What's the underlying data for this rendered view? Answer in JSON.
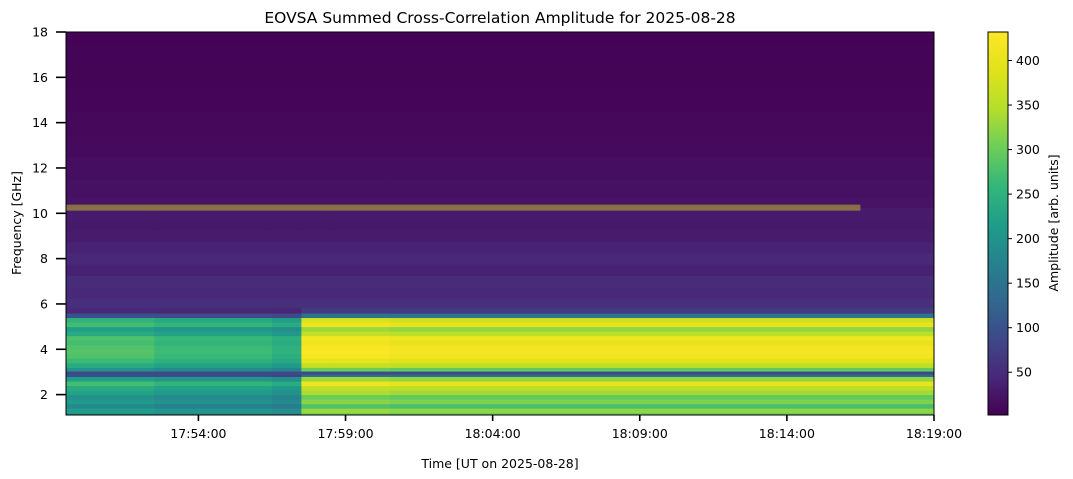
{
  "chart_data": {
    "type": "heatmap",
    "title": "EOVSA Summed Cross-Correlation Amplitude for 2025-08-28",
    "xlabel": "Time [UT on 2025-08-28]",
    "ylabel": "Frequency [GHz]",
    "colorbar_label": "Amplitude [arb. units]",
    "colormap": "viridis",
    "x_range": [
      "17:49:30",
      "18:19:00"
    ],
    "ylim": [
      1.1,
      18.0
    ],
    "clim": [
      2,
      432
    ],
    "x_ticks": [
      "17:54:00",
      "17:59:00",
      "18:04:00",
      "18:09:00",
      "18:14:00",
      "18:19:00"
    ],
    "y_ticks": [
      2,
      4,
      6,
      8,
      10,
      12,
      14,
      16,
      18
    ],
    "colorbar_ticks": [
      50,
      100,
      150,
      200,
      250,
      300,
      350,
      400
    ],
    "time_segments": [
      {
        "start": "17:49:30",
        "end": "17:52:30",
        "level": 0.66
      },
      {
        "start": "17:52:30",
        "end": "17:56:30",
        "level": 0.62
      },
      {
        "start": "17:56:30",
        "end": "17:57:30",
        "level": 0.58
      },
      {
        "start": "17:57:30",
        "end": "17:58:30",
        "level": 1.0
      },
      {
        "start": "17:58:30",
        "end": "18:00:30",
        "level": 1.0
      },
      {
        "start": "18:00:30",
        "end": "18:19:00",
        "level": 0.98
      }
    ],
    "frequency_profile": [
      {
        "freq": 1.1,
        "amp": 300
      },
      {
        "freq": 1.3,
        "amp": 330
      },
      {
        "freq": 1.5,
        "amp": 280
      },
      {
        "freq": 1.7,
        "amp": 320
      },
      {
        "freq": 1.9,
        "amp": 300
      },
      {
        "freq": 2.1,
        "amp": 340
      },
      {
        "freq": 2.3,
        "amp": 360
      },
      {
        "freq": 2.5,
        "amp": 410
      },
      {
        "freq": 2.7,
        "amp": 330
      },
      {
        "freq": 2.9,
        "amp": 140
      },
      {
        "freq": 3.1,
        "amp": 300
      },
      {
        "freq": 3.3,
        "amp": 360
      },
      {
        "freq": 3.5,
        "amp": 400
      },
      {
        "freq": 3.7,
        "amp": 420
      },
      {
        "freq": 3.9,
        "amp": 430
      },
      {
        "freq": 4.1,
        "amp": 425
      },
      {
        "freq": 4.3,
        "amp": 410
      },
      {
        "freq": 4.5,
        "amp": 420
      },
      {
        "freq": 4.7,
        "amp": 360
      },
      {
        "freq": 4.9,
        "amp": 330
      },
      {
        "freq": 5.1,
        "amp": 410
      },
      {
        "freq": 5.3,
        "amp": 380
      },
      {
        "freq": 5.5,
        "amp": 150
      },
      {
        "freq": 5.7,
        "amp": 70
      },
      {
        "freq": 6.0,
        "amp": 55
      },
      {
        "freq": 6.5,
        "amp": 45
      },
      {
        "freq": 7.0,
        "amp": 50
      },
      {
        "freq": 7.5,
        "amp": 38
      },
      {
        "freq": 8.0,
        "amp": 45
      },
      {
        "freq": 8.5,
        "amp": 40
      },
      {
        "freq": 9.0,
        "amp": 32
      },
      {
        "freq": 9.5,
        "amp": 28
      },
      {
        "freq": 10.0,
        "amp": 30
      },
      {
        "freq": 10.5,
        "amp": 22
      },
      {
        "freq": 11.0,
        "amp": 20
      },
      {
        "freq": 12.0,
        "amp": 16
      },
      {
        "freq": 13.0,
        "amp": 12
      },
      {
        "freq": 14.0,
        "amp": 10
      },
      {
        "freq": 15.0,
        "amp": 8
      },
      {
        "freq": 16.0,
        "amp": 6
      },
      {
        "freq": 17.0,
        "amp": 5
      },
      {
        "freq": 18.0,
        "amp": 4
      }
    ],
    "rfi_band": {
      "freq": 10.25,
      "amp": 380,
      "start": "17:49:30",
      "end": "18:16:30"
    },
    "dark_line": {
      "freq": 2.95,
      "amp": 90
    }
  }
}
